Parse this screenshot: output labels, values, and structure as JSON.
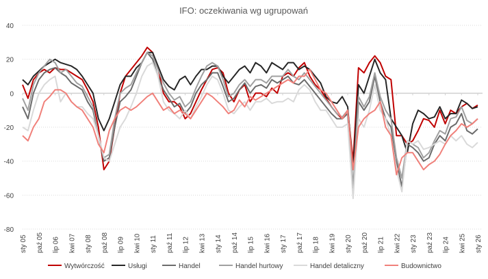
{
  "chart_data": {
    "type": "line",
    "title": "IFO: oczekiwania wg ugrupowań",
    "xlabel": "",
    "ylabel": "",
    "ylim": [
      -80,
      40
    ],
    "yticks": [
      40,
      20,
      0,
      -20,
      -40,
      -60,
      -80
    ],
    "grid": true,
    "legend_position": "bottom",
    "x_note": "x = months since Jan 2005, quarterly sampling",
    "x": [
      0,
      3,
      6,
      9,
      12,
      15,
      18,
      21,
      24,
      27,
      30,
      33,
      36,
      39,
      42,
      45,
      48,
      51,
      54,
      57,
      60,
      63,
      66,
      69,
      72,
      75,
      78,
      81,
      84,
      87,
      90,
      93,
      96,
      99,
      102,
      105,
      108,
      111,
      114,
      117,
      120,
      123,
      126,
      129,
      132,
      135,
      138,
      141,
      144,
      147,
      150,
      153,
      156,
      159,
      162,
      165,
      168,
      171,
      174,
      177,
      180,
      183,
      186,
      189,
      192,
      195,
      198,
      201,
      204,
      207,
      210,
      213,
      216,
      219,
      222,
      225,
      228,
      231,
      234,
      237,
      240,
      243,
      246,
      249,
      252
    ],
    "xtick_labels": [
      "sty 05",
      "paź 05",
      "lip 06",
      "kwi 07",
      "sty 08",
      "paź 08",
      "lip 09",
      "kwi 10",
      "sty 11",
      "paź 11",
      "lip 12",
      "kwi 13",
      "sty 14",
      "paź 14",
      "lip 15",
      "kwi 16",
      "sty 17",
      "paź 17",
      "lip 18",
      "kwi 19",
      "sty 20",
      "paź 20",
      "lip 21",
      "kwi 22",
      "sty 23",
      "paź 23",
      "lip 24",
      "kwi 25",
      "sty 26"
    ],
    "series": [
      {
        "name": "Wytwórczość",
        "color": "#c00000",
        "values": [
          5,
          -3,
          8,
          12,
          14,
          12,
          15,
          14,
          14,
          12,
          10,
          8,
          2,
          -5,
          -20,
          -45,
          -40,
          -20,
          0,
          10,
          14,
          18,
          22,
          27,
          24,
          15,
          0,
          -5,
          -5,
          -8,
          -15,
          -12,
          -5,
          2,
          8,
          14,
          15,
          12,
          0,
          -5,
          2,
          5,
          -5,
          0,
          0,
          -2,
          3,
          0,
          10,
          12,
          10,
          15,
          18,
          10,
          5,
          2,
          -3,
          -8,
          -12,
          -15,
          -10,
          -40,
          15,
          12,
          18,
          22,
          18,
          10,
          8,
          -25,
          -25,
          -30,
          -28,
          -22,
          -15,
          -16,
          -20,
          -10,
          -18,
          -10,
          -12,
          -8,
          -6,
          -9,
          -7
        ]
      },
      {
        "name": "Usługi",
        "color": "#262626",
        "values": [
          8,
          5,
          10,
          13,
          16,
          18,
          20,
          18,
          17,
          16,
          14,
          10,
          5,
          0,
          -15,
          -22,
          -15,
          -5,
          5,
          10,
          10,
          15,
          18,
          24,
          24,
          16,
          8,
          4,
          2,
          8,
          10,
          5,
          10,
          14,
          14,
          16,
          16,
          10,
          6,
          10,
          14,
          16,
          12,
          18,
          16,
          12,
          18,
          16,
          14,
          18,
          18,
          14,
          16,
          14,
          10,
          6,
          -2,
          -5,
          -6,
          -2,
          -8,
          -45,
          5,
          0,
          10,
          20,
          12,
          8,
          -15,
          -20,
          -25,
          -35,
          -18,
          -10,
          -12,
          -15,
          -14,
          -8,
          -15,
          -12,
          -12,
          -4,
          -6,
          -9,
          -8
        ]
      },
      {
        "name": "Handel",
        "color": "#6b6b6b",
        "values": [
          -8,
          -15,
          0,
          8,
          12,
          14,
          15,
          12,
          10,
          6,
          4,
          2,
          -5,
          -10,
          -25,
          -40,
          -38,
          -20,
          -5,
          -2,
          2,
          10,
          18,
          24,
          20,
          10,
          2,
          -3,
          -8,
          -6,
          -12,
          -8,
          0,
          5,
          8,
          12,
          12,
          4,
          -5,
          -3,
          2,
          6,
          0,
          4,
          5,
          3,
          8,
          6,
          8,
          10,
          6,
          5,
          8,
          4,
          0,
          -4,
          -8,
          -12,
          -15,
          -15,
          -12,
          -60,
          -5,
          -10,
          -5,
          10,
          -5,
          -15,
          -20,
          -40,
          -55,
          -30,
          -32,
          -35,
          -40,
          -38,
          -30,
          -25,
          -28,
          -20,
          -18,
          -12,
          -22,
          -24,
          -21
        ]
      },
      {
        "name": "Handel hurtowy",
        "color": "#a0a0a0",
        "values": [
          -3,
          -10,
          5,
          12,
          16,
          20,
          18,
          12,
          14,
          10,
          6,
          4,
          -2,
          -8,
          -25,
          -38,
          -36,
          -15,
          0,
          3,
          5,
          12,
          18,
          24,
          22,
          14,
          6,
          0,
          -4,
          -2,
          -8,
          -5,
          3,
          10,
          16,
          18,
          16,
          8,
          -2,
          0,
          5,
          8,
          4,
          8,
          8,
          6,
          10,
          10,
          10,
          14,
          10,
          8,
          12,
          8,
          4,
          0,
          -4,
          -8,
          -12,
          -14,
          -10,
          -55,
          -2,
          -8,
          -2,
          12,
          -2,
          -10,
          -15,
          -38,
          -50,
          -28,
          -30,
          -32,
          -38,
          -35,
          -28,
          -22,
          -24,
          -15,
          -14,
          -8,
          -16,
          -18,
          -15
        ]
      },
      {
        "name": "Handel detaliczny",
        "color": "#d9d9d9",
        "values": [
          -20,
          -22,
          -10,
          0,
          5,
          8,
          10,
          -5,
          0,
          -5,
          -8,
          -8,
          -12,
          -15,
          -25,
          -38,
          -40,
          -30,
          -20,
          -15,
          -8,
          0,
          10,
          16,
          18,
          10,
          -5,
          -10,
          -12,
          -15,
          -10,
          -15,
          -8,
          -2,
          5,
          10,
          8,
          0,
          -10,
          -12,
          -8,
          -5,
          -10,
          -5,
          -5,
          -3,
          -6,
          -5,
          -5,
          -3,
          -5,
          2,
          5,
          2,
          -5,
          -10,
          -10,
          -15,
          -20,
          -20,
          -18,
          -62,
          -15,
          -20,
          -10,
          5,
          -10,
          -15,
          -25,
          -45,
          -58,
          -28,
          -30,
          -28,
          -33,
          -32,
          -30,
          -28,
          -30,
          -25,
          -28,
          -25,
          -30,
          -32,
          -29
        ]
      },
      {
        "name": "Budownictwo",
        "color": "#f0807a",
        "values": [
          -25,
          -28,
          -20,
          -15,
          -5,
          -2,
          2,
          2,
          0,
          -5,
          -8,
          -10,
          -15,
          -20,
          -30,
          -35,
          -22,
          -15,
          -10,
          -8,
          -10,
          -8,
          -5,
          -2,
          0,
          -5,
          -10,
          -8,
          -12,
          -10,
          -12,
          -15,
          -10,
          -5,
          0,
          -2,
          -5,
          -8,
          -12,
          -10,
          -4,
          -8,
          -2,
          -4,
          -2,
          0,
          2,
          4,
          6,
          8,
          6,
          10,
          10,
          14,
          8,
          2,
          0,
          -5,
          -10,
          -15,
          -10,
          -45,
          -20,
          -15,
          -12,
          -10,
          -5,
          -20,
          -25,
          -48,
          -38,
          -35,
          -35,
          -40,
          -45,
          -42,
          -40,
          -36,
          -30,
          -25,
          -22,
          -18,
          -20,
          -18,
          -15
        ]
      }
    ]
  }
}
